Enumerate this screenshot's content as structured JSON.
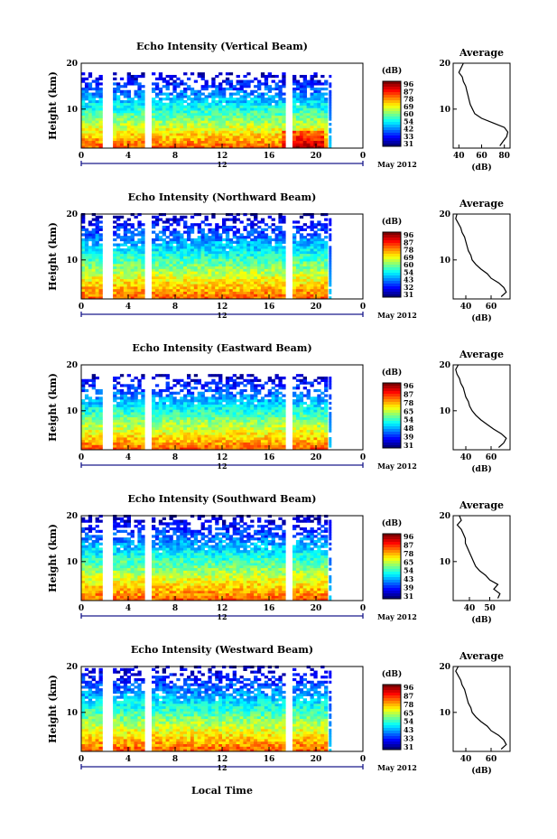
{
  "figure": {
    "xlabel": "Local Time",
    "date_label": "May 2012"
  },
  "chart_data": [
    {
      "type": "heatmap",
      "title": "Echo Intensity (Vertical Beam)",
      "ylabel": "Height (km)",
      "xlim": [
        0,
        24
      ],
      "ylim": [
        1.5,
        20
      ],
      "x_ticks": [
        "0",
        "4",
        "8",
        "12",
        "16",
        "20",
        "0"
      ],
      "y_ticks": [
        "20",
        "10"
      ],
      "secondary_label": "12",
      "gaps_hours": [
        [
          2.0,
          2.5
        ],
        [
          5.6,
          5.9
        ],
        [
          17.6,
          18.0
        ]
      ],
      "data_end_hour": 20.8,
      "top_limit_km": 18,
      "colorbar": {
        "label": "(dB)",
        "ticks": [
          "96",
          "87",
          "78",
          "69",
          "60",
          "54",
          "42",
          "33",
          "31"
        ],
        "cmap": "jet"
      },
      "average": {
        "title": "Average",
        "xlabel": "(dB)",
        "x_ticks": [
          "40",
          "60",
          "80"
        ],
        "xlim": [
          35,
          85
        ],
        "y_ticks": [
          "20",
          "10"
        ],
        "profile": [
          [
            2,
            76
          ],
          [
            3,
            79
          ],
          [
            4,
            82
          ],
          [
            5,
            83
          ],
          [
            6,
            80
          ],
          [
            7,
            70
          ],
          [
            8,
            60
          ],
          [
            9,
            54
          ],
          [
            10,
            52
          ],
          [
            11,
            50
          ],
          [
            12,
            49
          ],
          [
            13,
            48
          ],
          [
            14,
            47
          ],
          [
            15,
            46
          ],
          [
            16,
            44
          ],
          [
            17,
            43
          ],
          [
            18,
            40
          ],
          [
            19,
            42
          ],
          [
            20,
            44
          ]
        ]
      }
    },
    {
      "type": "heatmap",
      "title": "Echo Intensity (Northward Beam)",
      "ylabel": "Height (km)",
      "xlim": [
        0,
        24
      ],
      "ylim": [
        1.5,
        20
      ],
      "x_ticks": [
        "0",
        "4",
        "8",
        "12",
        "16",
        "20",
        "0"
      ],
      "y_ticks": [
        "20",
        "10"
      ],
      "secondary_label": "12",
      "gaps_hours": [
        [
          2.0,
          2.5
        ],
        [
          5.6,
          5.9
        ],
        [
          17.6,
          18.0
        ]
      ],
      "data_end_hour": 20.8,
      "top_limit_km": 20,
      "colorbar": {
        "label": "(dB)",
        "ticks": [
          "96",
          "87",
          "78",
          "69",
          "60",
          "54",
          "43",
          "32",
          "31"
        ],
        "cmap": "jet"
      },
      "average": {
        "title": "Average",
        "xlabel": "(dB)",
        "x_ticks": [
          "40",
          "60"
        ],
        "xlim": [
          30,
          75
        ],
        "y_ticks": [
          "20",
          "10"
        ],
        "profile": [
          [
            2,
            68
          ],
          [
            3,
            72
          ],
          [
            4,
            70
          ],
          [
            5,
            66
          ],
          [
            6,
            60
          ],
          [
            7,
            57
          ],
          [
            8,
            52
          ],
          [
            9,
            48
          ],
          [
            10,
            45
          ],
          [
            11,
            44
          ],
          [
            12,
            42
          ],
          [
            13,
            41
          ],
          [
            14,
            40
          ],
          [
            15,
            39
          ],
          [
            16,
            37
          ],
          [
            17,
            36
          ],
          [
            18,
            34
          ],
          [
            19,
            32
          ],
          [
            20,
            33
          ]
        ]
      }
    },
    {
      "type": "heatmap",
      "title": "Echo Intensity (Eastward Beam)",
      "ylabel": "Height (km)",
      "xlim": [
        0,
        24
      ],
      "ylim": [
        1.5,
        20
      ],
      "x_ticks": [
        "0",
        "4",
        "8",
        "12",
        "16",
        "20",
        "0"
      ],
      "y_ticks": [
        "20",
        "10"
      ],
      "secondary_label": "12",
      "gaps_hours": [
        [
          2.0,
          2.5
        ],
        [
          5.6,
          5.9
        ],
        [
          17.6,
          18.0
        ]
      ],
      "data_end_hour": 20.8,
      "top_limit_km": 18,
      "colorbar": {
        "label": "(dB)",
        "ticks": [
          "96",
          "87",
          "78",
          "65",
          "54",
          "48",
          "39",
          "31"
        ],
        "cmap": "jet"
      },
      "average": {
        "title": "Average",
        "xlabel": "(dB)",
        "x_ticks": [
          "40",
          "60"
        ],
        "xlim": [
          30,
          75
        ],
        "y_ticks": [
          "20",
          "10"
        ],
        "profile": [
          [
            2,
            66
          ],
          [
            3,
            70
          ],
          [
            4,
            72
          ],
          [
            5,
            68
          ],
          [
            6,
            62
          ],
          [
            7,
            57
          ],
          [
            8,
            52
          ],
          [
            9,
            48
          ],
          [
            10,
            45
          ],
          [
            11,
            43
          ],
          [
            12,
            42
          ],
          [
            13,
            40
          ],
          [
            14,
            39
          ],
          [
            15,
            38
          ],
          [
            16,
            36
          ],
          [
            17,
            35
          ],
          [
            18,
            33
          ],
          [
            19,
            32
          ],
          [
            20,
            34
          ]
        ]
      }
    },
    {
      "type": "heatmap",
      "title": "Echo Intensity (Southward Beam)",
      "ylabel": "Height (km)",
      "xlim": [
        0,
        24
      ],
      "ylim": [
        1.5,
        20
      ],
      "x_ticks": [
        "0",
        "4",
        "8",
        "12",
        "16",
        "20",
        "0"
      ],
      "y_ticks": [
        "20",
        "10"
      ],
      "secondary_label": "12",
      "gaps_hours": [
        [
          2.0,
          2.5
        ],
        [
          5.6,
          5.9
        ],
        [
          17.6,
          18.0
        ]
      ],
      "data_end_hour": 20.8,
      "top_limit_km": 20,
      "colorbar": {
        "label": "(dB)",
        "ticks": [
          "96",
          "87",
          "78",
          "65",
          "54",
          "43",
          "39",
          "31"
        ],
        "cmap": "jet"
      },
      "average": {
        "title": "Average",
        "xlabel": "(dB)",
        "x_ticks": [
          "40",
          "50"
        ],
        "xlim": [
          32,
          60
        ],
        "y_ticks": [
          "20",
          "10"
        ],
        "profile": [
          [
            2,
            54
          ],
          [
            3,
            55
          ],
          [
            4,
            52
          ],
          [
            5,
            54
          ],
          [
            6,
            50
          ],
          [
            7,
            48
          ],
          [
            8,
            45
          ],
          [
            9,
            43
          ],
          [
            10,
            42
          ],
          [
            11,
            41
          ],
          [
            12,
            40
          ],
          [
            13,
            39
          ],
          [
            14,
            38
          ],
          [
            15,
            38
          ],
          [
            16,
            37
          ],
          [
            17,
            36
          ],
          [
            18,
            34
          ],
          [
            19,
            36
          ],
          [
            20,
            35
          ]
        ]
      }
    },
    {
      "type": "heatmap",
      "title": "Echo Intensity (Westward Beam)",
      "ylabel": "Height (km)",
      "xlim": [
        0,
        24
      ],
      "ylim": [
        1.5,
        20
      ],
      "x_ticks": [
        "0",
        "4",
        "8",
        "12",
        "16",
        "20",
        "0"
      ],
      "y_ticks": [
        "20",
        "10"
      ],
      "secondary_label": "12",
      "gaps_hours": [
        [
          2.0,
          2.5
        ],
        [
          5.6,
          5.9
        ],
        [
          17.6,
          18.0
        ]
      ],
      "data_end_hour": 20.8,
      "top_limit_km": 20,
      "colorbar": {
        "label": "(dB)",
        "ticks": [
          "96",
          "87",
          "78",
          "65",
          "54",
          "43",
          "33",
          "31"
        ],
        "cmap": "jet"
      },
      "average": {
        "title": "Average",
        "xlabel": "(dB)",
        "x_ticks": [
          "40",
          "60"
        ],
        "xlim": [
          30,
          75
        ],
        "y_ticks": [
          "20",
          "10"
        ],
        "profile": [
          [
            2,
            68
          ],
          [
            3,
            72
          ],
          [
            4,
            70
          ],
          [
            5,
            66
          ],
          [
            6,
            60
          ],
          [
            7,
            57
          ],
          [
            8,
            52
          ],
          [
            9,
            48
          ],
          [
            10,
            45
          ],
          [
            11,
            44
          ],
          [
            12,
            42
          ],
          [
            13,
            41
          ],
          [
            14,
            40
          ],
          [
            15,
            39
          ],
          [
            16,
            37
          ],
          [
            17,
            36
          ],
          [
            18,
            34
          ],
          [
            19,
            32
          ],
          [
            20,
            34
          ]
        ]
      }
    }
  ]
}
